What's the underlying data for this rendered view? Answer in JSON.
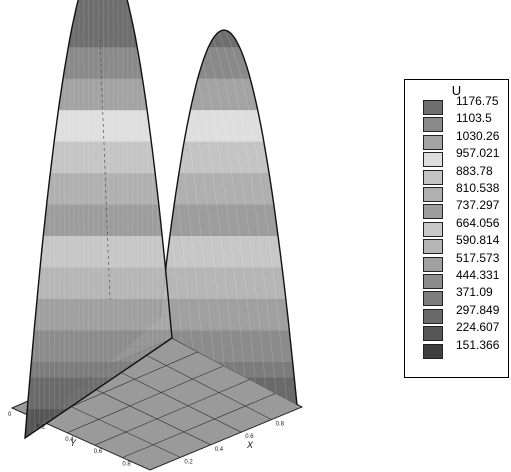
{
  "chart_data": {
    "type": "surface",
    "legend": {
      "title": "U",
      "levels": [
        "1176.75",
        "1103.5",
        "1030.26",
        "957.021",
        "883.78",
        "810.538",
        "737.297",
        "664.056",
        "590.814",
        "517.573",
        "444.331",
        "371.09",
        "297.849",
        "224.607",
        "151.366"
      ],
      "colors": [
        "#6e6e6e",
        "#8a8a8a",
        "#a3a3a3",
        "#dedede",
        "#c4c4c4",
        "#b0b0b0",
        "#9d9d9d",
        "#c7c7c7",
        "#b6b6b6",
        "#a0a0a0",
        "#8c8c8c",
        "#7c7c7c",
        "#6a6a6a",
        "#565656",
        "#3e3e3e"
      ]
    },
    "y_axis": {
      "label": "Y",
      "ticks": [
        "0",
        "0.2",
        "0.4",
        "0.6",
        "0.8"
      ]
    },
    "x_axis": {
      "label": "X",
      "ticks": [
        "0.2",
        "0.4",
        "0.6",
        "0.8"
      ]
    }
  }
}
